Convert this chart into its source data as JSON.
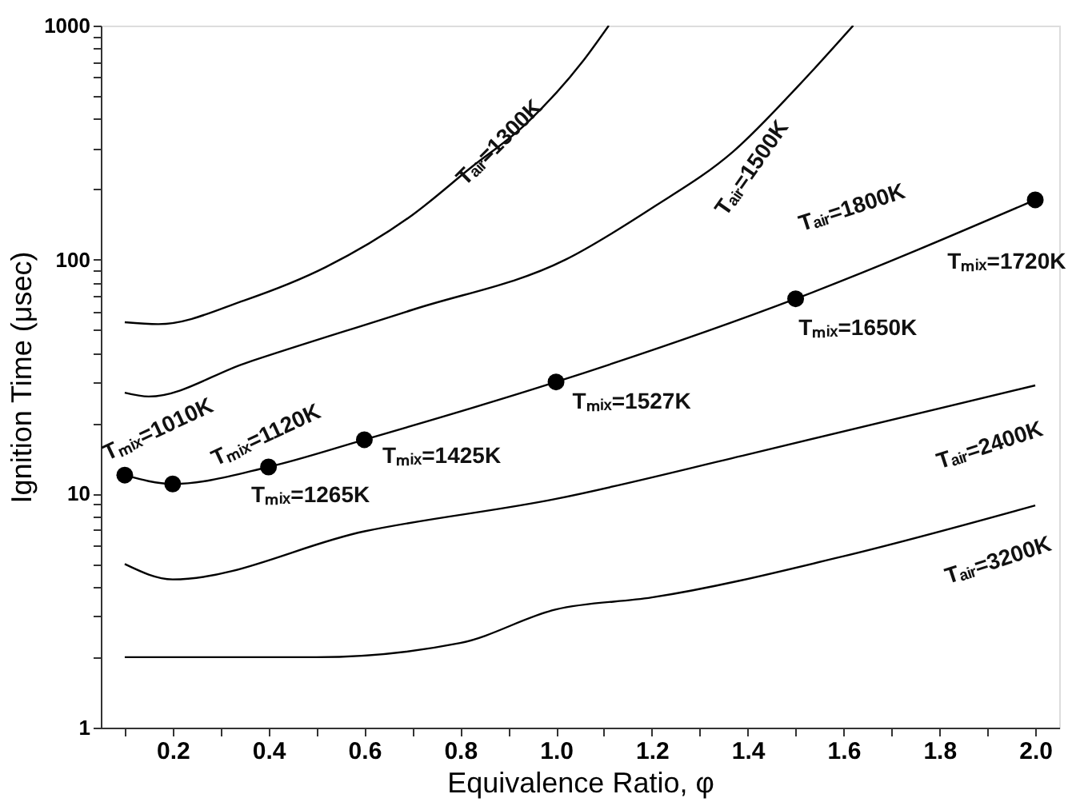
{
  "chart_data": {
    "type": "line",
    "xlabel": "Equivalence Ratio, φ",
    "ylabel": "Ignition Time (μsec)",
    "log": "y",
    "grid": false,
    "legend": false,
    "line_style": "solid",
    "xlim": [
      0.05,
      2.05
    ],
    "ylim": [
      1,
      1000
    ],
    "xticks": [
      {
        "value": 0.1,
        "label": null
      },
      0.2,
      {
        "value": 0.3,
        "label": null
      },
      0.4,
      {
        "value": 0.5,
        "label": null
      },
      0.6,
      {
        "value": 0.7,
        "label": null
      },
      0.8,
      {
        "value": 0.9,
        "label": null
      },
      {
        "value": 1.0,
        "label": "1.0"
      },
      {
        "value": 1.1,
        "label": null
      },
      1.2,
      {
        "value": 1.3,
        "label": null
      },
      1.4,
      {
        "value": 1.5,
        "label": null
      },
      1.6,
      {
        "value": 1.7,
        "label": null
      },
      1.8,
      {
        "value": 1.9,
        "label": null
      },
      {
        "value": 2.0,
        "label": "2.0"
      }
    ],
    "yticks": [
      1,
      {
        "value": 2,
        "label": null
      },
      {
        "value": 3,
        "label": null
      },
      {
        "value": 4,
        "label": null
      },
      {
        "value": 5,
        "label": null
      },
      {
        "value": 6,
        "label": null
      },
      {
        "value": 7,
        "label": null
      },
      {
        "value": 8,
        "label": null
      },
      {
        "value": 9,
        "label": null
      },
      10,
      {
        "value": 20,
        "label": null
      },
      {
        "value": 30,
        "label": null
      },
      {
        "value": 40,
        "label": null
      },
      {
        "value": 50,
        "label": null
      },
      {
        "value": 60,
        "label": null
      },
      {
        "value": 70,
        "label": null
      },
      {
        "value": 80,
        "label": null
      },
      {
        "value": 90,
        "label": null
      },
      100,
      {
        "value": 200,
        "label": null
      },
      {
        "value": 300,
        "label": null
      },
      {
        "value": 400,
        "label": null
      },
      {
        "value": 500,
        "label": null
      },
      {
        "value": 600,
        "label": null
      },
      {
        "value": 700,
        "label": null
      },
      {
        "value": 800,
        "label": null
      },
      {
        "value": 900,
        "label": null
      },
      1000
    ],
    "series": [
      {
        "name": "Tₐᵢᵣ=1300K",
        "color": "#000000",
        "marker": "none",
        "x": [
          0.1,
          0.17,
          0.35,
          0.52,
          0.7,
          0.82,
          0.94,
          1.055,
          1.11
        ],
        "values": [
          54,
          53,
          67,
          93,
          155,
          245,
          385,
          700,
          1000
        ]
      },
      {
        "name": "Tₐᵢᵣ=1500K",
        "color": "#000000",
        "marker": "none",
        "x": [
          0.1,
          0.15,
          0.35,
          0.7,
          1.02,
          1.2,
          1.37,
          1.51,
          1.62
        ],
        "values": [
          27,
          26,
          36,
          61,
          100,
          166,
          290,
          565,
          1000
        ]
      },
      {
        "name": "Tₐᵢᵣ=1800K",
        "color": "#000000",
        "marker": "circle",
        "x": [
          0.1,
          0.2,
          0.4,
          0.6,
          1.0,
          1.5,
          2.0
        ],
        "values": [
          12,
          11,
          13,
          17,
          30,
          68,
          180
        ]
      },
      {
        "name": "Tₐᵢᵣ=2400K",
        "color": "#000000",
        "marker": "none",
        "x": [
          0.1,
          0.2,
          0.6,
          1.0,
          1.4,
          2.0
        ],
        "values": [
          5.0,
          4.3,
          6.9,
          9.5,
          14.7,
          29
        ]
      },
      {
        "name": "Tₐᵢᵣ=3200K",
        "color": "#000000",
        "marker": "none",
        "x": [
          0.1,
          0.5,
          0.8,
          1.0,
          1.2,
          1.6,
          2.0
        ],
        "values": [
          2.0,
          2.0,
          2.3,
          3.2,
          3.6,
          5.4,
          8.9
        ]
      }
    ],
    "annotations": [
      {
        "text": "Tₘᵢₓ=1720K",
        "x": 2.0,
        "y": 180
      },
      {
        "text": "Tₘᵢₓ=1650K",
        "x": 1.5,
        "y": 68
      },
      {
        "text": "Tₘᵢₓ=1527K",
        "x": 1.0,
        "y": 30
      },
      {
        "text": "Tₘᵢₓ=1425K",
        "x": 0.6,
        "y": 17
      },
      {
        "text": "Tₘᵢₓ=1265K",
        "x": 0.4,
        "y": 13
      },
      {
        "text": "Tₘᵢₓ=1120K",
        "x": 0.2,
        "y": 11
      },
      {
        "text": "Tₘᵢₓ=1010K",
        "x": 0.1,
        "y": 12
      }
    ]
  }
}
